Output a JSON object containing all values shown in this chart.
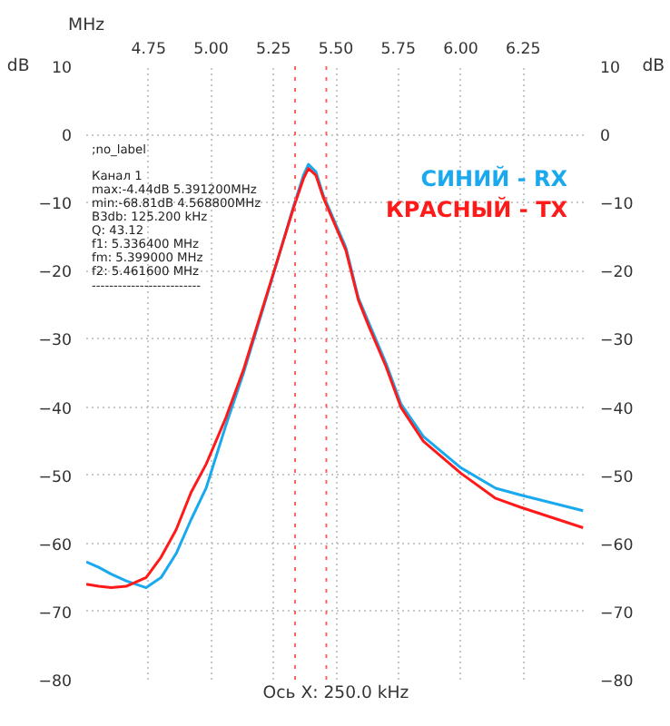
{
  "chart_data": {
    "type": "line",
    "xlabel": "MHz",
    "ylabel": "dB",
    "y2label": "dB",
    "xlim": [
      4.5,
      6.5
    ],
    "xticks": [
      {
        "value": 4.75,
        "label": "4.75"
      },
      {
        "value": 5.0,
        "label": "5.00"
      },
      {
        "value": 5.25,
        "label": "5.25"
      },
      {
        "value": 5.5,
        "label": "5.50"
      },
      {
        "value": 5.75,
        "label": "5.75"
      },
      {
        "value": 6.0,
        "label": "6.00"
      },
      {
        "value": 6.25,
        "label": "6.25"
      }
    ],
    "ylim": [
      -80,
      10
    ],
    "yticks": [
      10,
      0,
      -10,
      -20,
      -30,
      -40,
      -50,
      -60,
      -70,
      -80
    ],
    "y2lim": [
      -80,
      10
    ],
    "y2ticks": [
      10,
      0,
      -10,
      -20,
      -30,
      -40,
      -50,
      -60,
      -70,
      -80
    ],
    "grid": true,
    "legend": "top right",
    "marker": "none",
    "line_style": "solid",
    "annotations": [
      ";no_label",
      "Канал 1",
      "max:-4.44dB 5.391200MHz",
      "min:-68.81dB 4.568800MHz",
      "B3db: 125.200 kHz",
      "Q: 43.12",
      "f1: 5.336400 MHz",
      "fm: 5.399000 MHz",
      "f2: 5.461600 MHz",
      "-------------------------",
      "Ось X: 250.0 kHz"
    ],
    "ref_lines": [
      {
        "axis": "x",
        "value": 5.3364,
        "label": null,
        "color": "#ff6060",
        "line_style": "dotted"
      },
      {
        "axis": "x",
        "value": 5.4616,
        "label": null,
        "color": "#ff6060",
        "line_style": "dotted"
      }
    ],
    "series": [
      {
        "name": "СИНИЙ - RX",
        "color": "#1aa9ee",
        "x": [
          4.5,
          4.55,
          4.6,
          4.66,
          4.74,
          4.8,
          4.86,
          4.92,
          4.98,
          5.06,
          5.13,
          5.24,
          5.33,
          5.37,
          5.39,
          5.42,
          5.45,
          5.54,
          5.59,
          5.63,
          5.7,
          5.76,
          5.85,
          6.0,
          6.14,
          6.24,
          6.49
        ],
        "values": [
          -62.7,
          -63.5,
          -64.5,
          -65.5,
          -66.5,
          -65,
          -61.5,
          -56.5,
          -51.9,
          -42.6,
          -35,
          -21.7,
          -10.6,
          -6,
          -4.4,
          -5.5,
          -9,
          -16.6,
          -24,
          -27.5,
          -33.5,
          -39.5,
          -44.3,
          -48.9,
          -51.9,
          -52.9,
          -55.2
        ]
      },
      {
        "name": "КРАСНЫЙ - TX",
        "color": "#ff1a1a",
        "x": [
          4.5,
          4.55,
          4.6,
          4.66,
          4.74,
          4.8,
          4.86,
          4.92,
          4.98,
          5.06,
          5.13,
          5.24,
          5.33,
          5.37,
          5.39,
          5.42,
          5.45,
          5.54,
          5.59,
          5.63,
          5.7,
          5.76,
          5.85,
          6.0,
          6.14,
          6.24,
          6.49
        ],
        "values": [
          -66,
          -66.3,
          -66.5,
          -66.3,
          -65,
          -62,
          -58,
          -52.5,
          -48.4,
          -41.5,
          -34.5,
          -21.5,
          -10.8,
          -6.5,
          -5,
          -6,
          -9.3,
          -17,
          -24.3,
          -28,
          -34,
          -40,
          -45,
          -49.7,
          -53.4,
          -54.7,
          -57.7
        ]
      }
    ]
  }
}
